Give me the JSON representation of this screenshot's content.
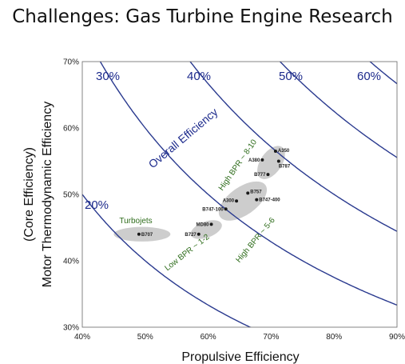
{
  "slide_title": "Challenges: Gas Turbine Engine Research",
  "chart_data": {
    "type": "scatter",
    "xlabel": "Propulsive Efficiency",
    "ylabel_line1": "Motor Thermodynamic  Efficiency",
    "ylabel_line2": "(Core Efficiency)",
    "xlim": [
      0.4,
      0.9
    ],
    "ylim": [
      0.3,
      0.7
    ],
    "x_ticks": [
      "40%",
      "50%",
      "60%",
      "70%",
      "80%",
      "90%"
    ],
    "y_ticks": [
      "30%",
      "40%",
      "50%",
      "60%",
      "70%"
    ],
    "overall_efficiency_label": "Overall Efficiency",
    "overall_efficiency_curves": [
      {
        "label": "20%",
        "value": 0.2
      },
      {
        "label": "30%",
        "value": 0.3
      },
      {
        "label": "40%",
        "value": 0.4
      },
      {
        "label": "50%",
        "value": 0.5
      },
      {
        "label": "60%",
        "value": 0.6
      }
    ],
    "points": [
      {
        "label": "B707",
        "x": 0.49,
        "y": 0.44
      },
      {
        "label": "B727",
        "x": 0.585,
        "y": 0.44
      },
      {
        "label": "MD80",
        "x": 0.605,
        "y": 0.455
      },
      {
        "label": "B747-100",
        "x": 0.628,
        "y": 0.478
      },
      {
        "label": "A300",
        "x": 0.645,
        "y": 0.49
      },
      {
        "label": "B757",
        "x": 0.663,
        "y": 0.502
      },
      {
        "label": "B747-400",
        "x": 0.677,
        "y": 0.492
      },
      {
        "label": "B777",
        "x": 0.695,
        "y": 0.53
      },
      {
        "label": "B787",
        "x": 0.712,
        "y": 0.55
      },
      {
        "label": "A380",
        "x": 0.686,
        "y": 0.552
      },
      {
        "label": "A350",
        "x": 0.707,
        "y": 0.565
      }
    ],
    "groups": [
      {
        "label": "Turbojets",
        "cx": 0.495,
        "cy": 0.44,
        "rx": 0.045,
        "ry": 0.011,
        "angle": 0
      },
      {
        "label": "Low BPR ~ 1-2",
        "cx": 0.597,
        "cy": 0.447,
        "rx": 0.026,
        "ry": 0.012,
        "angle": -20
      },
      {
        "label": "High BPR ~ 5-6",
        "cx": 0.655,
        "cy": 0.49,
        "rx": 0.044,
        "ry": 0.021,
        "angle": -35
      },
      {
        "label": "High BPR ~ 8-10",
        "cx": 0.7,
        "cy": 0.548,
        "rx": 0.03,
        "ry": 0.016,
        "angle": -55
      }
    ],
    "colors": {
      "curve": "#2a3a8f",
      "group_fill": "#c4c4c4",
      "point": "#1a1a1a",
      "group_label": "#2f6d1c"
    }
  }
}
